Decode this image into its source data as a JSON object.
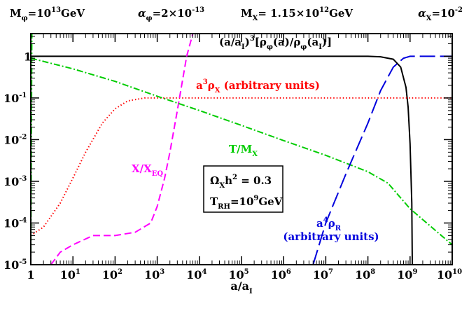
{
  "chart_data": {
    "type": "line",
    "x_scale": "log",
    "y_scale": "log",
    "xlim": [
      1,
      10000000000
    ],
    "ylim": [
      1e-05,
      3.5
    ],
    "xlabel": {
      "base": "a/a",
      "sub": "I"
    },
    "x_ticks": [
      {
        "value": 1,
        "base": "1",
        "exp": ""
      },
      {
        "value": 10,
        "base": "10",
        "exp": "1"
      },
      {
        "value": 100,
        "base": "10",
        "exp": "2"
      },
      {
        "value": 1000,
        "base": "10",
        "exp": "3"
      },
      {
        "value": 10000,
        "base": "10",
        "exp": "4"
      },
      {
        "value": 100000,
        "base": "10",
        "exp": "5"
      },
      {
        "value": 1000000,
        "base": "10",
        "exp": "6"
      },
      {
        "value": 10000000,
        "base": "10",
        "exp": "7"
      },
      {
        "value": 100000000,
        "base": "10",
        "exp": "8"
      },
      {
        "value": 1000000000,
        "base": "10",
        "exp": "9"
      },
      {
        "value": 10000000000,
        "base": "10",
        "exp": "10"
      }
    ],
    "y_ticks": [
      {
        "value": 1,
        "base": "1",
        "exp": ""
      },
      {
        "value": 0.1,
        "base": "10",
        "exp": "-1"
      },
      {
        "value": 0.01,
        "base": "10",
        "exp": "-2"
      },
      {
        "value": 0.001,
        "base": "10",
        "exp": "-3"
      },
      {
        "value": 0.0001,
        "base": "10",
        "exp": "-4"
      },
      {
        "value": 1e-05,
        "base": "10",
        "exp": "-5"
      }
    ],
    "header": [
      [
        {
          "t": "M"
        },
        {
          "t": "φ",
          "sub": true
        },
        {
          "t": "=10"
        },
        {
          "t": "13",
          "sup": true
        },
        {
          "t": "GeV"
        }
      ],
      [
        {
          "t": "α",
          "italic": true
        },
        {
          "t": "φ",
          "sub": true
        },
        {
          "t": "=2×10"
        },
        {
          "t": "-13",
          "sup": true
        }
      ],
      [
        {
          "t": "M"
        },
        {
          "t": "X",
          "sub": true
        },
        {
          "t": "= 1.15×10"
        },
        {
          "t": "12",
          "sup": true
        },
        {
          "t": "GeV"
        }
      ],
      [
        {
          "t": "α",
          "italic": true
        },
        {
          "t": "X",
          "sub": true
        },
        {
          "t": "=10"
        },
        {
          "t": "-2",
          "sup": true
        }
      ]
    ],
    "series": [
      {
        "label": [
          {
            "t": "(a/a"
          },
          {
            "t": "I",
            "sub": true
          },
          {
            "t": ")"
          },
          {
            "t": "3",
            "sup": true
          },
          {
            "t": "[ρ"
          },
          {
            "t": "φ",
            "sub": true
          },
          {
            "t": "(a)/ρ"
          },
          {
            "t": "φ",
            "sub": true
          },
          {
            "t": "(a"
          },
          {
            "t": "I",
            "sub": true
          },
          {
            "t": ")]"
          }
        ],
        "color": "#000000",
        "dash": "",
        "points": [
          [
            1,
            1
          ],
          [
            100000000,
            1
          ],
          [
            200000000,
            0.97
          ],
          [
            400000000,
            0.85
          ],
          [
            600000000,
            0.55
          ],
          [
            800000000,
            0.18
          ],
          [
            900000000,
            0.06
          ],
          [
            1000000000,
            0.008
          ],
          [
            1100000000,
            0.0003
          ],
          [
            1130000000,
            1e-05
          ]
        ]
      },
      {
        "label": [
          {
            "t": "a"
          },
          {
            "t": "3",
            "sup": true
          },
          {
            "t": "ρ"
          },
          {
            "t": "X",
            "sub": true
          },
          {
            "t": " (arbitrary units)"
          }
        ],
        "color": "#ff0000",
        "dash": "1.5,3",
        "points": [
          [
            1,
            5e-05
          ],
          [
            2,
            8e-05
          ],
          [
            5,
            0.0003
          ],
          [
            10,
            0.0012
          ],
          [
            20,
            0.005
          ],
          [
            50,
            0.025
          ],
          [
            100,
            0.055
          ],
          [
            200,
            0.085
          ],
          [
            500,
            0.1
          ],
          [
            10000000000,
            0.1
          ]
        ]
      },
      {
        "label": [
          {
            "t": "X/X"
          },
          {
            "t": "EQ",
            "sub": true
          }
        ],
        "color": "#ff00ff",
        "dash": "10,5",
        "points": [
          [
            3,
            1e-05
          ],
          [
            5,
            2e-05
          ],
          [
            10,
            3e-05
          ],
          [
            30,
            5e-05
          ],
          [
            100,
            5e-05
          ],
          [
            300,
            6e-05
          ],
          [
            700,
            0.0001
          ],
          [
            1000,
            0.00025
          ],
          [
            1500,
            0.0012
          ],
          [
            2000,
            0.005
          ],
          [
            3000,
            0.05
          ],
          [
            5000,
            1
          ],
          [
            7000,
            3.5
          ]
        ]
      },
      {
        "label": [
          {
            "t": "T/M"
          },
          {
            "t": "X",
            "sub": true
          }
        ],
        "color": "#00cc00",
        "dash": "9,3,2,3",
        "points": [
          [
            1,
            0.9
          ],
          [
            10,
            0.5
          ],
          [
            100,
            0.25
          ],
          [
            1000,
            0.11
          ],
          [
            10000,
            0.05
          ],
          [
            100000,
            0.022
          ],
          [
            1000000,
            0.0095
          ],
          [
            10000000,
            0.0042
          ],
          [
            100000000,
            0.0017
          ],
          [
            300000000,
            0.0009
          ],
          [
            1000000000,
            0.00022
          ],
          [
            10000000000,
            3e-05
          ]
        ]
      },
      {
        "label": [
          {
            "t": "a"
          },
          {
            "t": "4",
            "sup": true
          },
          {
            "t": "ρ"
          },
          {
            "t": "R",
            "sub": true
          }
        ],
        "sublabel": "(arbitrary units)",
        "color": "#0000dd",
        "dash": "22,7",
        "points": [
          [
            5000000,
            1e-05
          ],
          [
            10000000,
            0.0001
          ],
          [
            30000000,
            0.0015
          ],
          [
            100000000,
            0.025
          ],
          [
            200000000,
            0.15
          ],
          [
            400000000,
            0.55
          ],
          [
            700000000,
            0.9
          ],
          [
            1000000000,
            1
          ],
          [
            10000000000,
            1
          ]
        ]
      },
      {
        "label": [
          {
            "t": "a/a"
          },
          {
            "t": "I",
            "sub": true
          }
        ],
        "color": "#00ee00",
        "dash": "9,3,2,3",
        "points": [
          [
            1,
            1e-05
          ],
          [
            1.06,
            3.5
          ]
        ]
      }
    ],
    "annotation_box": {
      "lines": [
        [
          {
            "t": "Ω"
          },
          {
            "t": "X",
            "sub": true
          },
          {
            "t": "h"
          },
          {
            "t": "2",
            "sup": true
          },
          {
            "t": " = 0.3"
          }
        ],
        [
          {
            "t": "T"
          },
          {
            "t": "RH",
            "sub": true
          },
          {
            "t": "=10"
          },
          {
            "t": "9",
            "sup": true
          },
          {
            "t": "GeV"
          }
        ]
      ]
    },
    "grid": false,
    "legend": "none"
  }
}
